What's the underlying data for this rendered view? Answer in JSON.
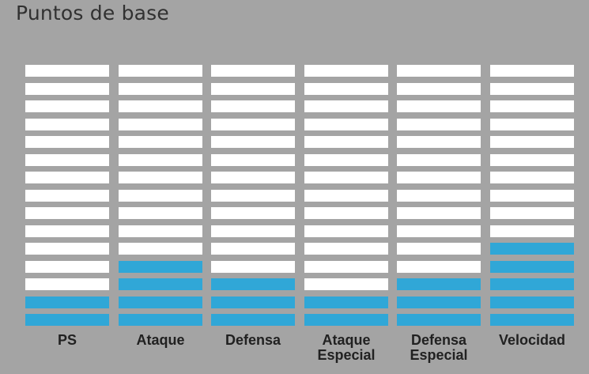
{
  "section": {
    "title": "Puntos de base"
  },
  "scale": {
    "segments_per_bar": 15
  },
  "colors": {
    "background": "#a4a4a4",
    "empty_segment": "#ffffff",
    "filled_segment": "#30a7d7",
    "label_text": "#212121",
    "title_text": "#313131"
  },
  "stats": [
    {
      "key": "ps",
      "label_lines": [
        "PS"
      ],
      "filled_segments": 2
    },
    {
      "key": "ataque",
      "label_lines": [
        "Ataque"
      ],
      "filled_segments": 4
    },
    {
      "key": "defensa",
      "label_lines": [
        "Defensa"
      ],
      "filled_segments": 3
    },
    {
      "key": "ataque-especial",
      "label_lines": [
        "Ataque",
        "Especial"
      ],
      "filled_segments": 2
    },
    {
      "key": "defensa-especial",
      "label_lines": [
        "Defensa",
        "Especial"
      ],
      "filled_segments": 3
    },
    {
      "key": "velocidad",
      "label_lines": [
        "Velocidad"
      ],
      "filled_segments": 5
    }
  ]
}
